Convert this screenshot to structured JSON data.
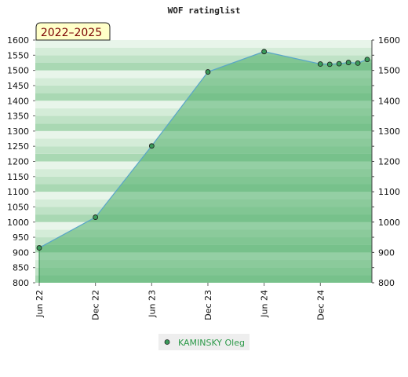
{
  "chart_data": {
    "type": "area",
    "title": "WOF ratinglist",
    "period_label": "2022–2025",
    "ylim": [
      800,
      1600
    ],
    "y_ticks": [
      800,
      850,
      900,
      950,
      1000,
      1050,
      1100,
      1150,
      1200,
      1250,
      1300,
      1350,
      1400,
      1450,
      1500,
      1550,
      1600
    ],
    "right_y_ticks": [
      800,
      900,
      1000,
      1100,
      1200,
      1300,
      1400,
      1500,
      1600
    ],
    "x_ticks": [
      "Jun 22",
      "Dec 22",
      "Jun 23",
      "Dec 23",
      "Jun 24",
      "Dec 24"
    ],
    "x_months": [
      "2022-06",
      "2022-12",
      "2023-06",
      "2023-12",
      "2024-06",
      "2024-12"
    ],
    "series": [
      {
        "name": "KAMINSKY Oleg",
        "color": "#5aa6c8",
        "marker_color": "#3a9a5a",
        "fill_color": "#4fae6a",
        "points": [
          {
            "x": "2022-06",
            "y": 915
          },
          {
            "x": "2022-12",
            "y": 1016
          },
          {
            "x": "2023-06",
            "y": 1251
          },
          {
            "x": "2023-12",
            "y": 1495
          },
          {
            "x": "2024-06",
            "y": 1562
          },
          {
            "x": "2024-12",
            "y": 1521
          },
          {
            "x": "2025-01",
            "y": 1520
          },
          {
            "x": "2025-02",
            "y": 1522
          },
          {
            "x": "2025-03",
            "y": 1526
          },
          {
            "x": "2025-04",
            "y": 1524
          },
          {
            "x": "2025-05",
            "y": 1536
          }
        ]
      }
    ],
    "x_max": "2025-05",
    "grid": true,
    "legend_position": "bottom"
  }
}
